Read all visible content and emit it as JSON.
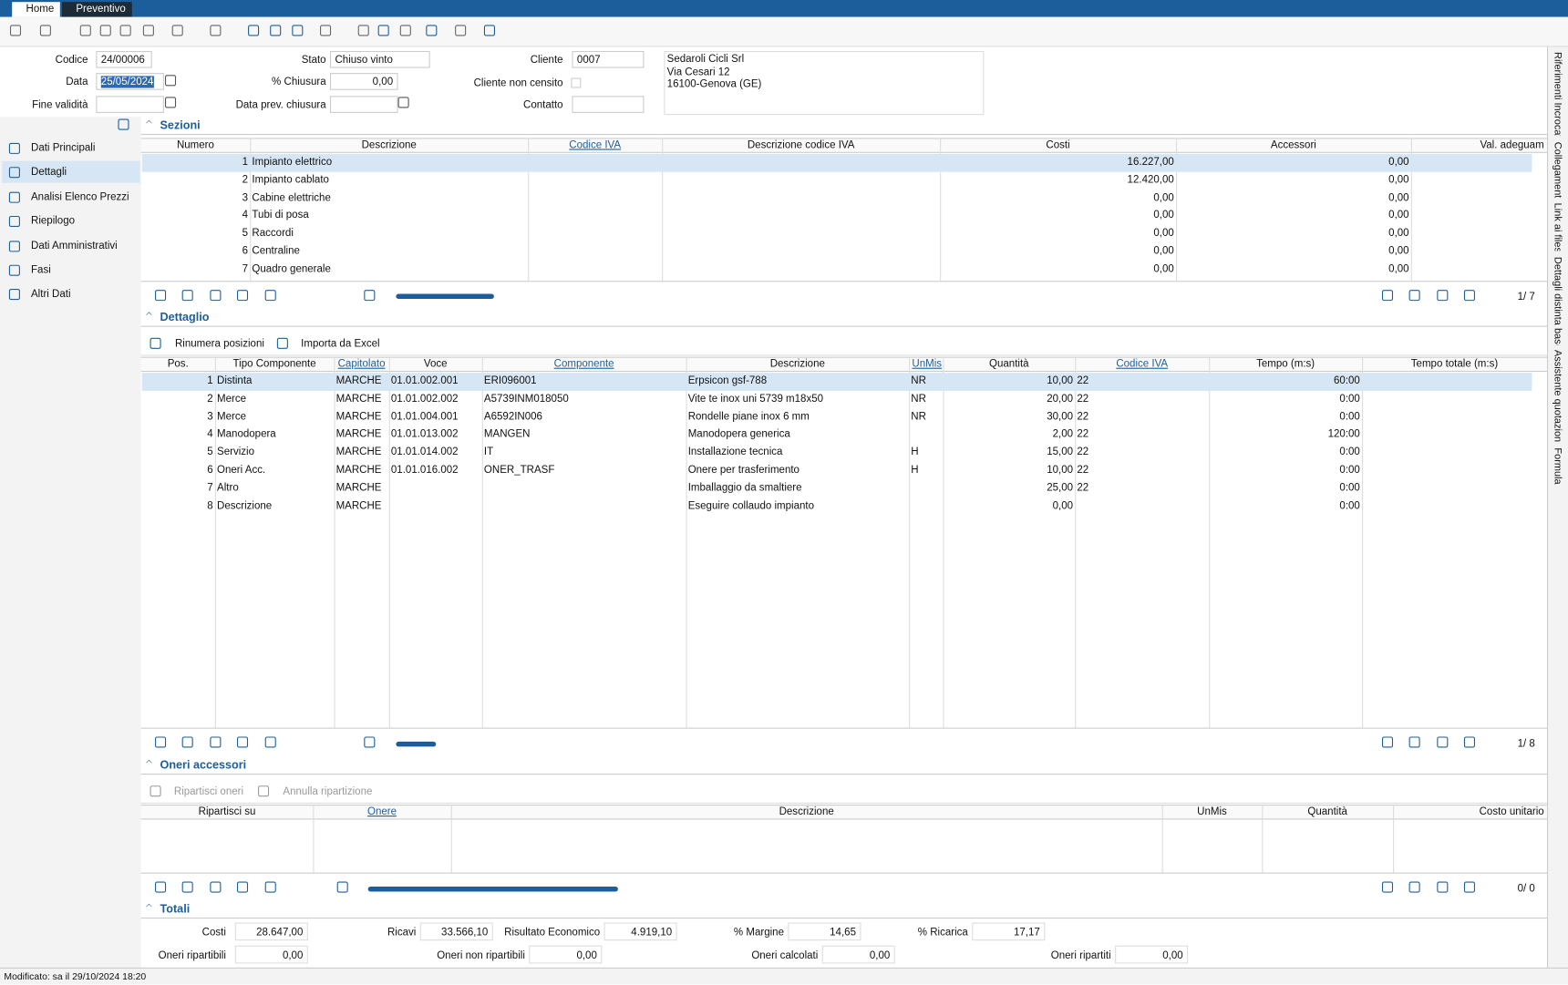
{
  "tabs": [
    "Home",
    "Preventivo"
  ],
  "form": {
    "codice": {
      "label": "Codice",
      "value": "24/00006"
    },
    "data": {
      "label": "Data",
      "value": "25/05/2024"
    },
    "fine_validita": {
      "label": "Fine validità"
    },
    "stato": {
      "label": "Stato",
      "value": "Chiuso vinto"
    },
    "chiusura": {
      "label": "% Chiusura",
      "value": "0,00"
    },
    "data_prev": {
      "label": "Data prev. chiusura"
    },
    "cliente": {
      "label": "Cliente",
      "value": "0007"
    },
    "non_censito": {
      "label": "Cliente non censito"
    },
    "contatto": {
      "label": "Contatto"
    },
    "indirizzo": [
      "Sedaroli Cicli Srl",
      "Via Cesari 12",
      "16100-Genova (GE)"
    ]
  },
  "sidebar": [
    "Dati Principali",
    "Dettagli",
    "Analisi Elenco Prezzi",
    "Riepilogo",
    "Dati Amministrativi",
    "Fasi",
    "Altri Dati"
  ],
  "right_tabs": [
    "Riferimenti Incrocati",
    "Collegamenti",
    "Link ai files",
    "Dettagli distinta base",
    "Assistente quotazione",
    "Formula"
  ],
  "sezioni": {
    "title": "Sezioni",
    "columns": [
      {
        "key": "numero",
        "label": "Numero"
      },
      {
        "key": "descrizione",
        "label": "Descrizione"
      },
      {
        "key": "codice_iva",
        "label": "Codice IVA"
      },
      {
        "key": "descrizione_iva",
        "label": "Descrizione codice IVA"
      },
      {
        "key": "costi",
        "label": "Costi"
      },
      {
        "key": "accessori",
        "label": "Accessori"
      },
      {
        "key": "val",
        "label": "Val. adeguam"
      }
    ],
    "rows": [
      {
        "numero": "1",
        "descrizione": "Impianto elettrico",
        "costi": "16.227,00",
        "accessori": "0,00"
      },
      {
        "numero": "2",
        "descrizione": "Impianto cablato",
        "costi": "12.420,00",
        "accessori": "0,00"
      },
      {
        "numero": "3",
        "descrizione": "Cabine elettriche",
        "costi": "0,00",
        "accessori": "0,00"
      },
      {
        "numero": "4",
        "descrizione": "Tubi di posa",
        "costi": "0,00",
        "accessori": "0,00"
      },
      {
        "numero": "5",
        "descrizione": "Raccordi",
        "costi": "0,00",
        "accessori": "0,00"
      },
      {
        "numero": "6",
        "descrizione": "Centraline",
        "costi": "0,00",
        "accessori": "0,00"
      },
      {
        "numero": "7",
        "descrizione": "Quadro generale",
        "costi": "0,00",
        "accessori": "0,00"
      }
    ],
    "pager": "1/  7"
  },
  "dettaglio": {
    "title": "Dettaglio",
    "buttons": [
      "Rinumera posizioni",
      "Importa da Excel"
    ],
    "columns": [
      {
        "key": "pos",
        "label": "Pos."
      },
      {
        "key": "tipo",
        "label": "Tipo Componente"
      },
      {
        "key": "capitolato",
        "label": "Capitolato"
      },
      {
        "key": "voce",
        "label": "Voce"
      },
      {
        "key": "componente",
        "label": "Componente"
      },
      {
        "key": "descrizione",
        "label": "Descrizione"
      },
      {
        "key": "unmis",
        "label": "UnMis"
      },
      {
        "key": "quantita",
        "label": "Quantità"
      },
      {
        "key": "codice_iva",
        "label": "Codice IVA"
      },
      {
        "key": "tempo",
        "label": "Tempo (m:s)"
      },
      {
        "key": "tempo_totale",
        "label": "Tempo totale (m:s)"
      }
    ],
    "rows": [
      {
        "pos": "1",
        "tipo": "Distinta",
        "capitolato": "MARCHE",
        "voce": "01.01.002.001",
        "componente": "ERI096001",
        "descrizione": "Erpsicon gsf-788",
        "unmis": "NR",
        "quantita": "10,00",
        "codice_iva": "22",
        "tempo": "60:00"
      },
      {
        "pos": "2",
        "tipo": "Merce",
        "capitolato": "MARCHE",
        "voce": "01.01.002.002",
        "componente": "A5739INM018050",
        "descrizione": "Vite te inox uni 5739 m18x50",
        "unmis": "NR",
        "quantita": "20,00",
        "codice_iva": "22",
        "tempo": "0:00"
      },
      {
        "pos": "3",
        "tipo": "Merce",
        "capitolato": "MARCHE",
        "voce": "01.01.004.001",
        "componente": "A6592IN006",
        "descrizione": "Rondelle piane inox 6 mm",
        "unmis": "NR",
        "quantita": "30,00",
        "codice_iva": "22",
        "tempo": "0:00"
      },
      {
        "pos": "4",
        "tipo": "Manodopera",
        "capitolato": "MARCHE",
        "voce": "01.01.013.002",
        "componente": "MANGEN",
        "descrizione": "Manodopera generica",
        "quantita": "2,00",
        "codice_iva": "22",
        "tempo": "120:00"
      },
      {
        "pos": "5",
        "tipo": "Servizio",
        "capitolato": "MARCHE",
        "voce": "01.01.014.002",
        "componente": "IT",
        "descrizione": "Installazione tecnica",
        "unmis": "H",
        "quantita": "15,00",
        "codice_iva": "22",
        "tempo": "0:00"
      },
      {
        "pos": "6",
        "tipo": "Oneri Acc.",
        "capitolato": "MARCHE",
        "voce": "01.01.016.002",
        "componente": "ONER_TRASF",
        "descrizione": "Onere per trasferimento",
        "unmis": "H",
        "quantita": "10,00",
        "codice_iva": "22",
        "tempo": "0:00"
      },
      {
        "pos": "7",
        "tipo": "Altro",
        "capitolato": "MARCHE",
        "descrizione": "Imballaggio da smaltiere",
        "quantita": "25,00",
        "codice_iva": "22",
        "tempo": "0:00"
      },
      {
        "pos": "8",
        "tipo": "Descrizione",
        "capitolato": "MARCHE",
        "descrizione": "Eseguire collaudo impianto",
        "quantita": "0,00",
        "tempo": "0:00"
      }
    ],
    "pager": "1/  8"
  },
  "oneri": {
    "title": "Oneri accessori",
    "buttons": [
      "Ripartisci oneri",
      "Annulla ripartizione"
    ],
    "columns": [
      {
        "key": "ripartisci",
        "label": "Ripartisci su"
      },
      {
        "key": "onere",
        "label": "Onere"
      },
      {
        "key": "descrizione",
        "label": "Descrizione"
      },
      {
        "key": "unmis",
        "label": "UnMis"
      },
      {
        "key": "quantita",
        "label": "Quantità"
      },
      {
        "key": "costo",
        "label": "Costo unitario"
      }
    ],
    "pager": "0/  0"
  },
  "totali": {
    "title": "Totali",
    "fields": [
      {
        "label": "Costi",
        "value": "28.647,00"
      },
      {
        "label": "Ricavi",
        "value": "33.566,10"
      },
      {
        "label": "Risultato Economico",
        "value": "4.919,10"
      },
      {
        "label": "% Margine",
        "value": "14,65"
      },
      {
        "label": "% Ricarica",
        "value": "17,17"
      },
      {
        "label": "Oneri ripartibili",
        "value": "0,00"
      },
      {
        "label": "Oneri non ripartibili",
        "value": "0,00"
      },
      {
        "label": "Oneri calcolati",
        "value": "0,00"
      },
      {
        "label": "Oneri ripartiti",
        "value": "0,00"
      }
    ]
  },
  "status": "Modificato: sa il 29/10/2024 18:20"
}
